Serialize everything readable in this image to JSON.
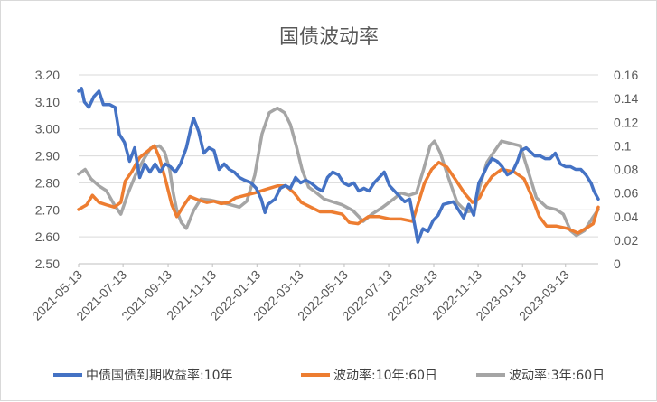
{
  "chart_data": {
    "type": "line",
    "title": "国债波动率",
    "y_left": {
      "min": 2.5,
      "max": 3.2,
      "step": 0.1,
      "tick_labels": [
        "2.50",
        "2.60",
        "2.70",
        "2.80",
        "2.90",
        "3.00",
        "3.10",
        "3.20"
      ]
    },
    "y_right": {
      "min": 0,
      "max": 0.16,
      "step": 0.02,
      "tick_labels": [
        "0",
        "0.02",
        "0.04",
        "0.06",
        "0.08",
        "0.1",
        "0.12",
        "0.14",
        "0.16"
      ]
    },
    "x": {
      "start": "2021-05-13",
      "end": "2023-04-27",
      "tick_labels": [
        "2021-05-13",
        "2021-07-13",
        "2021-09-13",
        "2021-11-13",
        "2022-01-13",
        "2022-03-13",
        "2022-05-13",
        "2022-07-13",
        "2022-09-13",
        "2022-11-13",
        "2023-01-13",
        "2023-03-13"
      ]
    },
    "grid": "horizontal",
    "legend_position": "bottom",
    "series": [
      {
        "name": "中债国债到期收益率:10年",
        "axis": "left",
        "color": "#4472C4",
        "points": [
          [
            "2021-05-13",
            3.14
          ],
          [
            "2021-05-17",
            3.15
          ],
          [
            "2021-05-21",
            3.1
          ],
          [
            "2021-05-27",
            3.08
          ],
          [
            "2021-06-03",
            3.12
          ],
          [
            "2021-06-10",
            3.14
          ],
          [
            "2021-06-16",
            3.09
          ],
          [
            "2021-06-25",
            3.09
          ],
          [
            "2021-07-02",
            3.08
          ],
          [
            "2021-07-08",
            2.98
          ],
          [
            "2021-07-15",
            2.95
          ],
          [
            "2021-07-22",
            2.88
          ],
          [
            "2021-07-29",
            2.93
          ],
          [
            "2021-08-05",
            2.82
          ],
          [
            "2021-08-12",
            2.87
          ],
          [
            "2021-08-19",
            2.84
          ],
          [
            "2021-08-26",
            2.87
          ],
          [
            "2021-09-02",
            2.84
          ],
          [
            "2021-09-09",
            2.87
          ],
          [
            "2021-09-16",
            2.86
          ],
          [
            "2021-09-23",
            2.84
          ],
          [
            "2021-09-30",
            2.87
          ],
          [
            "2021-10-08",
            2.93
          ],
          [
            "2021-10-14",
            3.0
          ],
          [
            "2021-10-18",
            3.04
          ],
          [
            "2021-10-25",
            2.99
          ],
          [
            "2021-11-01",
            2.91
          ],
          [
            "2021-11-08",
            2.93
          ],
          [
            "2021-11-15",
            2.92
          ],
          [
            "2021-11-22",
            2.85
          ],
          [
            "2021-11-29",
            2.87
          ],
          [
            "2021-12-06",
            2.85
          ],
          [
            "2021-12-13",
            2.84
          ],
          [
            "2021-12-20",
            2.82
          ],
          [
            "2021-12-27",
            2.81
          ],
          [
            "2022-01-05",
            2.8
          ],
          [
            "2022-01-12",
            2.78
          ],
          [
            "2022-01-19",
            2.74
          ],
          [
            "2022-01-24",
            2.69
          ],
          [
            "2022-01-28",
            2.72
          ],
          [
            "2022-02-07",
            2.74
          ],
          [
            "2022-02-14",
            2.78
          ],
          [
            "2022-02-21",
            2.79
          ],
          [
            "2022-02-28",
            2.78
          ],
          [
            "2022-03-07",
            2.82
          ],
          [
            "2022-03-14",
            2.8
          ],
          [
            "2022-03-21",
            2.81
          ],
          [
            "2022-03-28",
            2.8
          ],
          [
            "2022-04-06",
            2.78
          ],
          [
            "2022-04-13",
            2.77
          ],
          [
            "2022-04-20",
            2.82
          ],
          [
            "2022-04-27",
            2.84
          ],
          [
            "2022-05-05",
            2.83
          ],
          [
            "2022-05-12",
            2.8
          ],
          [
            "2022-05-19",
            2.79
          ],
          [
            "2022-05-26",
            2.8
          ],
          [
            "2022-06-02",
            2.77
          ],
          [
            "2022-06-09",
            2.78
          ],
          [
            "2022-06-16",
            2.77
          ],
          [
            "2022-06-23",
            2.8
          ],
          [
            "2022-06-30",
            2.82
          ],
          [
            "2022-07-07",
            2.84
          ],
          [
            "2022-07-14",
            2.79
          ],
          [
            "2022-07-21",
            2.77
          ],
          [
            "2022-07-28",
            2.75
          ],
          [
            "2022-08-04",
            2.73
          ],
          [
            "2022-08-11",
            2.74
          ],
          [
            "2022-08-18",
            2.64
          ],
          [
            "2022-08-22",
            2.58
          ],
          [
            "2022-08-29",
            2.63
          ],
          [
            "2022-09-05",
            2.62
          ],
          [
            "2022-09-12",
            2.66
          ],
          [
            "2022-09-19",
            2.68
          ],
          [
            "2022-09-26",
            2.72
          ],
          [
            "2022-10-10",
            2.73
          ],
          [
            "2022-10-17",
            2.7
          ],
          [
            "2022-10-24",
            2.67
          ],
          [
            "2022-10-31",
            2.72
          ],
          [
            "2022-11-07",
            2.68
          ],
          [
            "2022-11-10",
            2.74
          ],
          [
            "2022-11-14",
            2.8
          ],
          [
            "2022-11-18",
            2.82
          ],
          [
            "2022-11-25",
            2.86
          ],
          [
            "2022-12-02",
            2.89
          ],
          [
            "2022-12-09",
            2.88
          ],
          [
            "2022-12-16",
            2.86
          ],
          [
            "2022-12-23",
            2.83
          ],
          [
            "2022-12-30",
            2.84
          ],
          [
            "2023-01-06",
            2.88
          ],
          [
            "2023-01-11",
            2.92
          ],
          [
            "2023-01-18",
            2.93
          ],
          [
            "2023-01-30",
            2.9
          ],
          [
            "2023-02-06",
            2.9
          ],
          [
            "2023-02-13",
            2.89
          ],
          [
            "2023-02-20",
            2.89
          ],
          [
            "2023-02-27",
            2.91
          ],
          [
            "2023-03-06",
            2.87
          ],
          [
            "2023-03-13",
            2.86
          ],
          [
            "2023-03-20",
            2.86
          ],
          [
            "2023-03-27",
            2.85
          ],
          [
            "2023-04-03",
            2.85
          ],
          [
            "2023-04-10",
            2.83
          ],
          [
            "2023-04-17",
            2.8
          ],
          [
            "2023-04-21",
            2.77
          ],
          [
            "2023-04-27",
            2.74
          ]
        ]
      },
      {
        "name": "波动率:10年:60日",
        "axis": "right",
        "color": "#ED7D31",
        "points": [
          [
            "2021-05-13",
            0.046
          ],
          [
            "2021-05-24",
            0.05
          ],
          [
            "2021-06-01",
            0.058
          ],
          [
            "2021-06-10",
            0.052
          ],
          [
            "2021-06-20",
            0.05
          ],
          [
            "2021-07-01",
            0.048
          ],
          [
            "2021-07-10",
            0.052
          ],
          [
            "2021-07-16",
            0.07
          ],
          [
            "2021-07-25",
            0.078
          ],
          [
            "2021-08-05",
            0.09
          ],
          [
            "2021-08-15",
            0.095
          ],
          [
            "2021-08-25",
            0.1
          ],
          [
            "2021-09-01",
            0.09
          ],
          [
            "2021-09-10",
            0.07
          ],
          [
            "2021-09-18",
            0.05
          ],
          [
            "2021-09-25",
            0.04
          ],
          [
            "2021-10-05",
            0.05
          ],
          [
            "2021-10-13",
            0.057
          ],
          [
            "2021-10-25",
            0.054
          ],
          [
            "2021-11-05",
            0.052
          ],
          [
            "2021-11-15",
            0.053
          ],
          [
            "2021-11-25",
            0.051
          ],
          [
            "2021-12-05",
            0.052
          ],
          [
            "2021-12-15",
            0.056
          ],
          [
            "2021-12-28",
            0.058
          ],
          [
            "2022-01-10",
            0.06
          ],
          [
            "2022-01-25",
            0.063
          ],
          [
            "2022-02-10",
            0.066
          ],
          [
            "2022-02-22",
            0.066
          ],
          [
            "2022-03-05",
            0.06
          ],
          [
            "2022-03-15",
            0.052
          ],
          [
            "2022-03-28",
            0.048
          ],
          [
            "2022-04-10",
            0.044
          ],
          [
            "2022-04-25",
            0.044
          ],
          [
            "2022-05-10",
            0.042
          ],
          [
            "2022-05-20",
            0.035
          ],
          [
            "2022-06-01",
            0.034
          ],
          [
            "2022-06-15",
            0.04
          ],
          [
            "2022-06-30",
            0.04
          ],
          [
            "2022-07-15",
            0.038
          ],
          [
            "2022-07-30",
            0.038
          ],
          [
            "2022-08-15",
            0.036
          ],
          [
            "2022-08-22",
            0.05
          ],
          [
            "2022-08-31",
            0.068
          ],
          [
            "2022-09-10",
            0.08
          ],
          [
            "2022-09-20",
            0.086
          ],
          [
            "2022-10-01",
            0.082
          ],
          [
            "2022-10-12",
            0.072
          ],
          [
            "2022-10-25",
            0.06
          ],
          [
            "2022-11-05",
            0.052
          ],
          [
            "2022-11-15",
            0.056
          ],
          [
            "2022-11-22",
            0.065
          ],
          [
            "2022-12-02",
            0.074
          ],
          [
            "2022-12-15",
            0.08
          ],
          [
            "2023-01-01",
            0.078
          ],
          [
            "2023-01-15",
            0.072
          ],
          [
            "2023-01-25",
            0.058
          ],
          [
            "2023-02-05",
            0.04
          ],
          [
            "2023-02-15",
            0.032
          ],
          [
            "2023-02-28",
            0.032
          ],
          [
            "2023-03-15",
            0.03
          ],
          [
            "2023-03-30",
            0.026
          ],
          [
            "2023-04-10",
            0.03
          ],
          [
            "2023-04-20",
            0.034
          ],
          [
            "2023-04-27",
            0.048
          ]
        ]
      },
      {
        "name": "波动率:3年:60日",
        "axis": "right",
        "color": "#A5A5A5",
        "points": [
          [
            "2021-05-13",
            0.076
          ],
          [
            "2021-05-22",
            0.08
          ],
          [
            "2021-05-30",
            0.072
          ],
          [
            "2021-06-10",
            0.066
          ],
          [
            "2021-06-20",
            0.062
          ],
          [
            "2021-07-01",
            0.05
          ],
          [
            "2021-07-10",
            0.042
          ],
          [
            "2021-07-20",
            0.06
          ],
          [
            "2021-07-30",
            0.075
          ],
          [
            "2021-08-10",
            0.088
          ],
          [
            "2021-08-20",
            0.098
          ],
          [
            "2021-09-01",
            0.1
          ],
          [
            "2021-09-08",
            0.095
          ],
          [
            "2021-09-15",
            0.08
          ],
          [
            "2021-09-20",
            0.06
          ],
          [
            "2021-09-25",
            0.045
          ],
          [
            "2021-10-01",
            0.035
          ],
          [
            "2021-10-08",
            0.03
          ],
          [
            "2021-10-18",
            0.045
          ],
          [
            "2021-10-28",
            0.055
          ],
          [
            "2021-11-10",
            0.054
          ],
          [
            "2021-11-25",
            0.052
          ],
          [
            "2021-12-08",
            0.05
          ],
          [
            "2021-12-20",
            0.048
          ],
          [
            "2021-12-30",
            0.053
          ],
          [
            "2022-01-10",
            0.075
          ],
          [
            "2022-01-20",
            0.11
          ],
          [
            "2022-01-30",
            0.128
          ],
          [
            "2022-02-10",
            0.132
          ],
          [
            "2022-02-20",
            0.128
          ],
          [
            "2022-02-28",
            0.118
          ],
          [
            "2022-03-08",
            0.1
          ],
          [
            "2022-03-16",
            0.08
          ],
          [
            "2022-03-25",
            0.065
          ],
          [
            "2022-04-05",
            0.06
          ],
          [
            "2022-04-15",
            0.055
          ],
          [
            "2022-04-25",
            0.053
          ],
          [
            "2022-05-10",
            0.05
          ],
          [
            "2022-05-25",
            0.045
          ],
          [
            "2022-06-08",
            0.036
          ],
          [
            "2022-06-20",
            0.042
          ],
          [
            "2022-07-05",
            0.048
          ],
          [
            "2022-07-20",
            0.055
          ],
          [
            "2022-07-30",
            0.06
          ],
          [
            "2022-08-10",
            0.058
          ],
          [
            "2022-08-20",
            0.06
          ],
          [
            "2022-08-30",
            0.08
          ],
          [
            "2022-09-08",
            0.1
          ],
          [
            "2022-09-14",
            0.104
          ],
          [
            "2022-09-22",
            0.094
          ],
          [
            "2022-10-02",
            0.075
          ],
          [
            "2022-10-15",
            0.052
          ],
          [
            "2022-10-28",
            0.044
          ],
          [
            "2022-11-08",
            0.045
          ],
          [
            "2022-11-15",
            0.065
          ],
          [
            "2022-11-25",
            0.086
          ],
          [
            "2022-12-05",
            0.095
          ],
          [
            "2022-12-15",
            0.104
          ],
          [
            "2022-12-28",
            0.102
          ],
          [
            "2023-01-10",
            0.1
          ],
          [
            "2023-01-20",
            0.08
          ],
          [
            "2023-02-01",
            0.056
          ],
          [
            "2023-02-15",
            0.048
          ],
          [
            "2023-02-28",
            0.046
          ],
          [
            "2023-03-10",
            0.042
          ],
          [
            "2023-03-20",
            0.028
          ],
          [
            "2023-03-28",
            0.024
          ],
          [
            "2023-04-08",
            0.028
          ],
          [
            "2023-04-18",
            0.038
          ],
          [
            "2023-04-27",
            0.046
          ]
        ]
      }
    ]
  }
}
